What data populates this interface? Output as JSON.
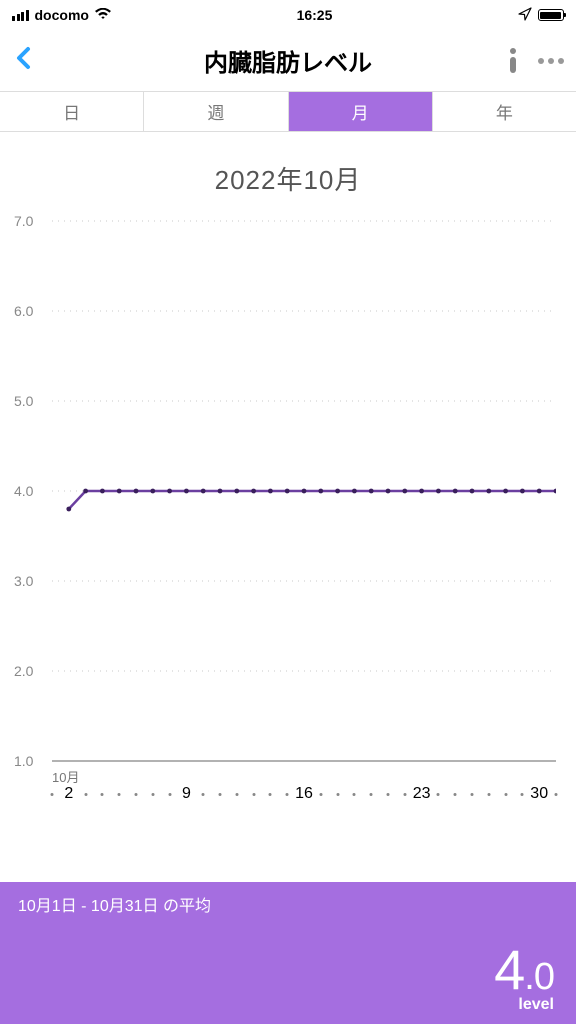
{
  "status": {
    "carrier": "docomo",
    "time": "16:25"
  },
  "header": {
    "title": "内臓脂肪レベル"
  },
  "tabs": {
    "items": [
      "日",
      "週",
      "月",
      "年"
    ],
    "active_index": 2
  },
  "chart": {
    "title": "2022年10月",
    "type": "line",
    "ylim": [
      1.0,
      7.0
    ],
    "ytick_step": 1.0,
    "yticks": [
      "7.0",
      "6.0",
      "5.0",
      "4.0",
      "3.0",
      "2.0",
      "1.0"
    ],
    "x_days": 31,
    "x_month_label": "10月",
    "x_major_labels": [
      2,
      9,
      16,
      23,
      30
    ],
    "series_color": "#6b3fa0",
    "marker_color": "#3a1f5c",
    "grid_color": "#c8c8c8",
    "axis_color": "#999999",
    "background": "#ffffff",
    "line_width": 2.5,
    "marker_radius": 2.4,
    "data": [
      {
        "x": 2,
        "y": 3.8
      },
      {
        "x": 3,
        "y": 4.0
      },
      {
        "x": 4,
        "y": 4.0
      },
      {
        "x": 5,
        "y": 4.0
      },
      {
        "x": 6,
        "y": 4.0
      },
      {
        "x": 7,
        "y": 4.0
      },
      {
        "x": 8,
        "y": 4.0
      },
      {
        "x": 9,
        "y": 4.0
      },
      {
        "x": 10,
        "y": 4.0
      },
      {
        "x": 11,
        "y": 4.0
      },
      {
        "x": 12,
        "y": 4.0
      },
      {
        "x": 13,
        "y": 4.0
      },
      {
        "x": 14,
        "y": 4.0
      },
      {
        "x": 15,
        "y": 4.0
      },
      {
        "x": 16,
        "y": 4.0
      },
      {
        "x": 17,
        "y": 4.0
      },
      {
        "x": 18,
        "y": 4.0
      },
      {
        "x": 19,
        "y": 4.0
      },
      {
        "x": 20,
        "y": 4.0
      },
      {
        "x": 21,
        "y": 4.0
      },
      {
        "x": 22,
        "y": 4.0
      },
      {
        "x": 23,
        "y": 4.0
      },
      {
        "x": 24,
        "y": 4.0
      },
      {
        "x": 25,
        "y": 4.0
      },
      {
        "x": 26,
        "y": 4.0
      },
      {
        "x": 27,
        "y": 4.0
      },
      {
        "x": 28,
        "y": 4.0
      },
      {
        "x": 29,
        "y": 4.0
      },
      {
        "x": 30,
        "y": 4.0
      },
      {
        "x": 31,
        "y": 4.0
      }
    ]
  },
  "footer": {
    "range_label": "10月1日 - 10月31日 の平均",
    "value_int": "4",
    "value_dec": ".0",
    "unit": "level",
    "background": "#a56ee0",
    "text_color": "#ffffff"
  }
}
